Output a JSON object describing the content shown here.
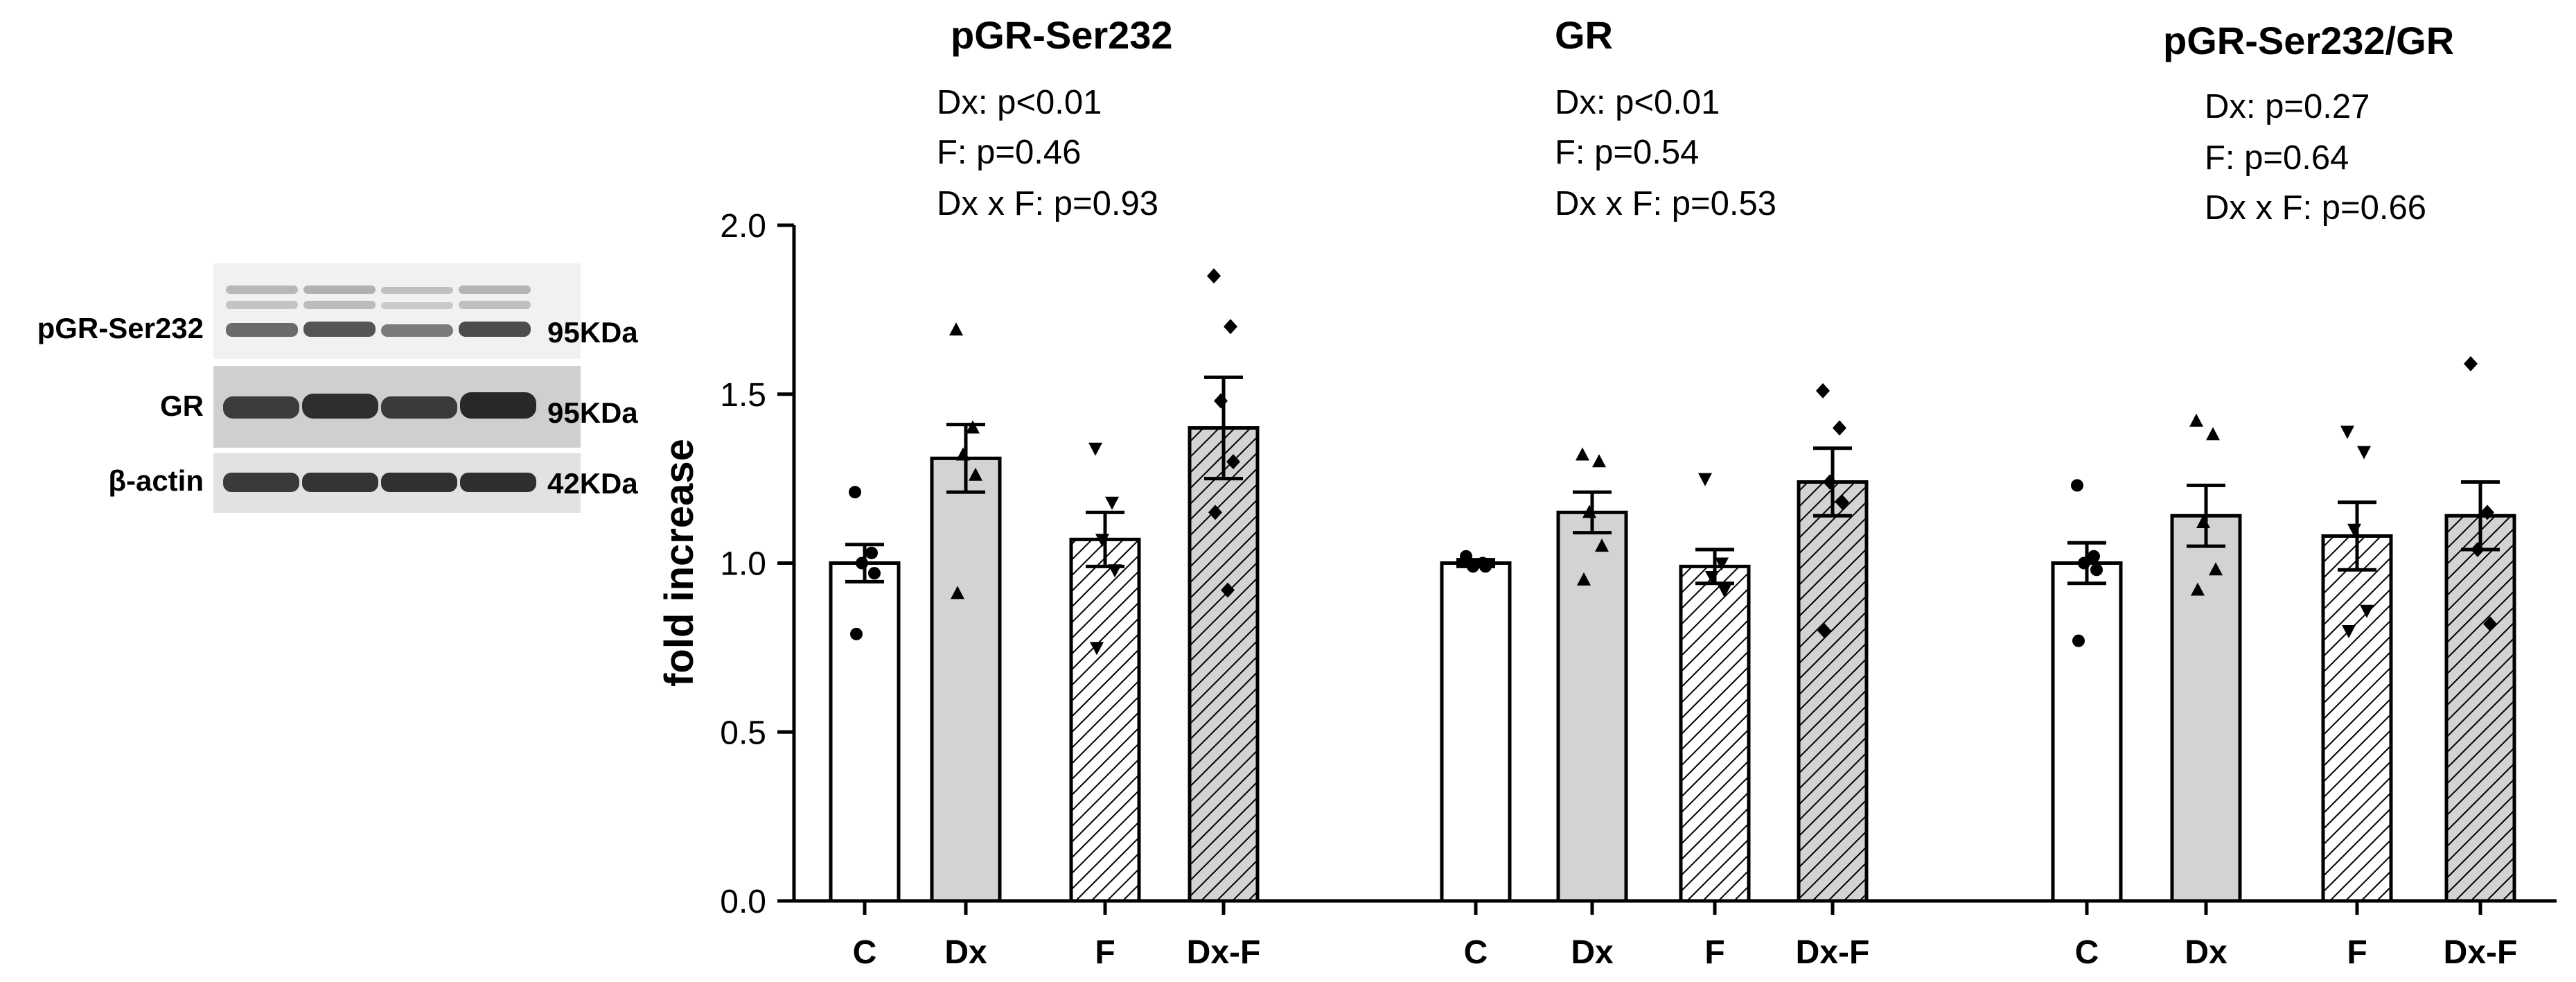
{
  "chart_data": {
    "type": "bar",
    "ylabel": "fold increase",
    "ylim": [
      0,
      2.0
    ],
    "yticks": [
      "0.0",
      "0.5",
      "1.0",
      "1.5",
      "2.0"
    ],
    "categories": [
      "C",
      "Dx",
      "F",
      "Dx-F"
    ],
    "bar_styles": [
      {
        "category": "C",
        "fill": "#ffffff",
        "hatched": false
      },
      {
        "category": "Dx",
        "fill": "#d3d3d3",
        "hatched": false
      },
      {
        "category": "F",
        "fill": "#ffffff",
        "hatched": true
      },
      {
        "category": "Dx-F",
        "fill": "#d3d3d3",
        "hatched": true
      }
    ],
    "marker_shapes": [
      "circle",
      "triangle-up",
      "triangle-down",
      "diamond"
    ],
    "groups": [
      {
        "title": "pGR-Ser232",
        "stats": [
          "Dx: p<0.01",
          "F:  p=0.46",
          "Dx x F: p=0.93"
        ],
        "means": [
          1.0,
          1.31,
          1.07,
          1.4
        ],
        "sem": [
          0.055,
          0.1,
          0.08,
          0.15
        ],
        "points": [
          [
            1.21,
            1.03,
            1.0,
            0.97,
            0.79
          ],
          [
            1.69,
            1.4,
            1.32,
            1.26,
            0.91
          ],
          [
            1.34,
            1.18,
            1.07,
            0.98,
            0.75
          ],
          [
            1.85,
            1.7,
            1.48,
            1.3,
            1.15,
            0.92
          ]
        ]
      },
      {
        "title": "GR",
        "stats": [
          "Dx: p<0.01",
          "F:  p=0.54",
          "Dx x F: p=0.53"
        ],
        "means": [
          1.0,
          1.15,
          0.99,
          1.24
        ],
        "sem": [
          0.01,
          0.06,
          0.05,
          0.1
        ],
        "points": [
          [
            1.02,
            1.0,
            0.99,
            0.99
          ],
          [
            1.32,
            1.3,
            1.15,
            1.05,
            0.95
          ],
          [
            1.25,
            1.0,
            0.96,
            0.92
          ],
          [
            1.51,
            1.4,
            1.24,
            1.18,
            0.8
          ]
        ]
      },
      {
        "title": "pGR-Ser232/GR",
        "stats": [
          "Dx: p=0.27",
          "F:  p=0.64",
          "Dx x F: p=0.66"
        ],
        "means": [
          1.0,
          1.14,
          1.08,
          1.14
        ],
        "sem": [
          0.06,
          0.09,
          0.1,
          0.1
        ],
        "points": [
          [
            1.23,
            1.02,
            1.0,
            0.98,
            0.77
          ],
          [
            1.42,
            1.38,
            1.12,
            0.98,
            0.92
          ],
          [
            1.39,
            1.33,
            1.1,
            0.86,
            0.8
          ],
          [
            1.59,
            1.15,
            1.04,
            0.82
          ]
        ]
      }
    ]
  },
  "blot": {
    "rows": [
      {
        "label": "pGR-Ser232",
        "size": "95KDa"
      },
      {
        "label": "GR",
        "size": "95KDa"
      },
      {
        "label": "β-actin",
        "size": "42KDa"
      }
    ],
    "lanes": 4
  }
}
